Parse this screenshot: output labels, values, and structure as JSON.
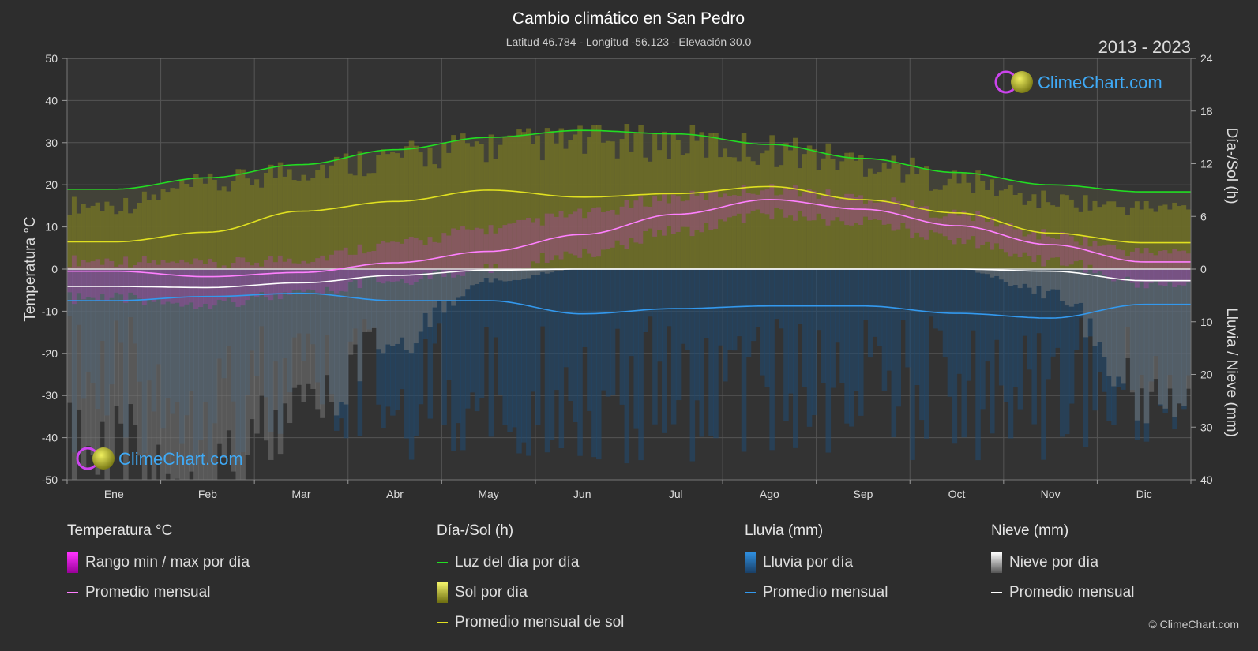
{
  "chart_data": {
    "type": "line",
    "title": "Cambio climático en San Pedro",
    "subtitle": "Latitud 46.784 - Longitud -56.123 - Elevación 30.0",
    "period": "2013 - 2023",
    "ylabel_left": "Temperatura °C",
    "ylabel_right_top": "Día-/Sol (h)",
    "ylabel_right_bottom": "Lluvia / Nieve (mm)",
    "categories": [
      "Ene",
      "Feb",
      "Mar",
      "Abr",
      "May",
      "Jun",
      "Jul",
      "Ago",
      "Sep",
      "Oct",
      "Nov",
      "Dic"
    ],
    "left_ticks": [
      "50",
      "40",
      "30",
      "20",
      "10",
      "0",
      "-10",
      "-20",
      "-30",
      "-40",
      "-50"
    ],
    "right_top_ticks": [
      "24",
      "18",
      "12",
      "6",
      "0"
    ],
    "right_bottom_ticks": [
      "10",
      "20",
      "30",
      "40"
    ],
    "ylim_left": [
      -50,
      50
    ],
    "ylim_right_top": [
      0,
      24
    ],
    "ylim_right_bottom": [
      40,
      0
    ],
    "grid": true,
    "series": [
      {
        "name": "Luz del día por día",
        "axis": "hours",
        "color": "#22dd22",
        "values": [
          9.1,
          10.4,
          11.9,
          13.6,
          15.0,
          15.8,
          15.4,
          14.2,
          12.6,
          11.0,
          9.6,
          8.8
        ]
      },
      {
        "name": "Sol por día",
        "axis": "hours",
        "color": "#c8c832",
        "values": [
          7.3,
          9.5,
          11.4,
          12.7,
          14.0,
          14.4,
          14.4,
          13.6,
          12.3,
          10.1,
          7.8,
          7.0
        ]
      },
      {
        "name": "Promedio mensual de sol",
        "axis": "hours",
        "color": "#e0e020",
        "values": [
          3.1,
          4.2,
          6.6,
          7.7,
          9.0,
          8.2,
          8.6,
          9.4,
          7.9,
          6.4,
          4.1,
          3.0
        ]
      },
      {
        "name": "Rango min / max por día (max)",
        "axis": "temp",
        "color": "#e040e0",
        "values": [
          2.0,
          1.0,
          2.5,
          6.0,
          9.5,
          13.0,
          17.0,
          19.0,
          17.0,
          13.0,
          8.0,
          4.0
        ]
      },
      {
        "name": "Rango min / max por día (min)",
        "axis": "temp",
        "color": "#e040e0",
        "values": [
          -7.0,
          -8.0,
          -6.0,
          -2.5,
          0.0,
          4.0,
          9.0,
          13.0,
          11.0,
          7.0,
          2.0,
          -3.5
        ]
      },
      {
        "name": "Promedio mensual (temperatura)",
        "axis": "temp",
        "color": "#ff80ff",
        "values": [
          -0.5,
          -1.8,
          -0.8,
          1.5,
          4.2,
          8.2,
          13.0,
          16.5,
          14.2,
          10.3,
          5.8,
          1.7
        ]
      },
      {
        "name": "Promedio mensual (nieve)",
        "axis": "precip",
        "color": "#ffffff",
        "values": [
          3.3,
          3.5,
          2.6,
          1.2,
          0.2,
          0.0,
          0.0,
          0.0,
          0.0,
          0.0,
          0.4,
          2.2
        ]
      },
      {
        "name": "Promedio mensual (lluvia)",
        "axis": "precip",
        "color": "#3399ee",
        "values": [
          6.0,
          5.2,
          4.6,
          6.0,
          6.0,
          8.5,
          7.5,
          7.0,
          7.0,
          8.4,
          9.3,
          6.7
        ]
      }
    ]
  },
  "watermark_text": "ClimeChart.com",
  "legend": {
    "temperature": {
      "title": "Temperatura °C",
      "items": [
        "Rango min / max por día",
        "Promedio mensual"
      ]
    },
    "sun": {
      "title": "Día-/Sol (h)",
      "items": [
        "Luz del día por día",
        "Sol por día",
        "Promedio mensual de sol"
      ]
    },
    "rain": {
      "title": "Lluvia (mm)",
      "items": [
        "Lluvia por día",
        "Promedio mensual"
      ]
    },
    "snow": {
      "title": "Nieve (mm)",
      "items": [
        "Nieve por día",
        "Promedio mensual"
      ]
    }
  },
  "copyright": "© ClimeChart.com",
  "colors": {
    "background": "#2d2d2d",
    "daylight": "#22dd22",
    "sun_band": "#8a8a1e",
    "sun_avg": "#e0e020",
    "temp_range": "#e040e0",
    "temp_avg": "#ff80ff",
    "rain": "#2f7fc8",
    "rain_avg": "#3399ee",
    "snow": "#aaaaaa",
    "snow_avg": "#ffffff",
    "brand": "#3fa9f5"
  }
}
